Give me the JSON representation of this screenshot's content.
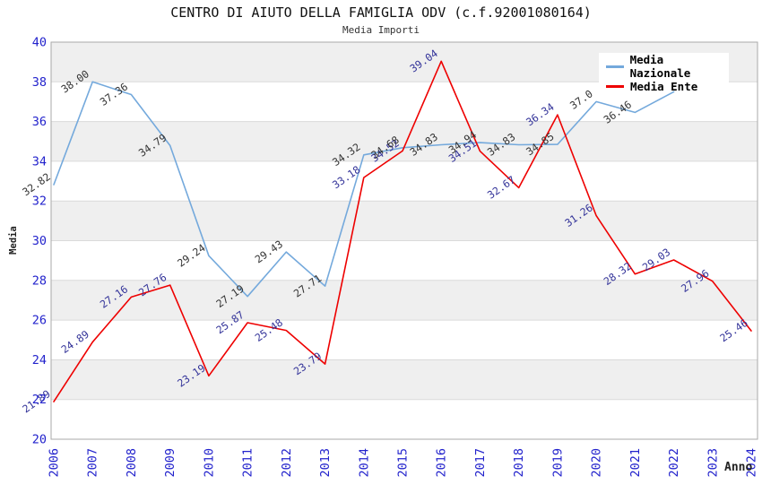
{
  "header": {
    "title": "CENTRO DI AIUTO DELLA FAMIGLIA ODV (c.f.92001080164)",
    "subtitle": "Media Importi"
  },
  "axes": {
    "y_title": "Media",
    "x_title": "Anno",
    "y_ticks": [
      20,
      22,
      24,
      26,
      28,
      30,
      32,
      34,
      36,
      38,
      40
    ],
    "x_ticks": [
      "2006",
      "2007",
      "2008",
      "2009",
      "2010",
      "2011",
      "2012",
      "2013",
      "2014",
      "2015",
      "2016",
      "2017",
      "2018",
      "2019",
      "2020",
      "2021",
      "2022",
      "2023",
      "2024"
    ]
  },
  "legend": {
    "items": [
      {
        "label": "Media Nazionale",
        "color": "#74A9DC"
      },
      {
        "label": "Media Ente",
        "color": "#EE0000"
      }
    ]
  },
  "colors": {
    "tick_label": "#2222CC",
    "band_gray": "#EFEFEF",
    "gridline": "#DADADA",
    "plot_border": "#AAAAAA",
    "nazionale_line": "#74A9DC",
    "ente_line": "#EE0000",
    "nazionale_point_label": "#333333",
    "ente_point_label": "#333399"
  },
  "chart_data": {
    "type": "line",
    "title": "Media Importi",
    "xlabel": "Anno",
    "ylabel": "Media",
    "ylim": [
      20,
      40
    ],
    "grid": "horizontal",
    "legend_position": "top-right",
    "x": [
      "2006",
      "2007",
      "2008",
      "2009",
      "2010",
      "2011",
      "2012",
      "2013",
      "2014",
      "2015",
      "2016",
      "2017",
      "2018",
      "2019",
      "2020",
      "2021",
      "2022",
      "2023",
      "2024"
    ],
    "series": [
      {
        "name": "Media Nazionale",
        "color": "#74A9DC",
        "label_color": "#333333",
        "values": [
          32.82,
          38.0,
          37.36,
          34.79,
          29.24,
          27.19,
          29.43,
          27.71,
          34.32,
          34.68,
          34.83,
          34.94,
          34.83,
          34.85,
          37.0,
          36.46,
          37.5,
          null,
          null
        ],
        "point_labels": [
          "32.82",
          "38.00",
          "37.36",
          "34.79",
          "29.24",
          "27.19",
          "29.43",
          "27.71",
          "34.32",
          "34.68",
          "34.83",
          "34.94",
          "34.83",
          "34.85",
          "37.0",
          "36.46",
          "",
          "",
          ""
        ]
      },
      {
        "name": "Media Ente",
        "color": "#EE0000",
        "label_color": "#333399",
        "values": [
          21.89,
          24.89,
          27.16,
          27.76,
          23.19,
          25.87,
          25.48,
          23.79,
          33.18,
          34.52,
          39.04,
          34.51,
          32.67,
          36.34,
          31.26,
          28.32,
          29.03,
          27.96,
          25.46
        ],
        "point_labels": [
          "21.89",
          "24.89",
          "27.16",
          "27.76",
          "23.19",
          "25.87",
          "25.48",
          "23.79",
          "33.18",
          "34.52",
          "39.04",
          "34.51",
          "32.67",
          "36.34",
          "31.26",
          "28.32",
          "29.03",
          "27.96",
          "25.46"
        ]
      }
    ]
  }
}
